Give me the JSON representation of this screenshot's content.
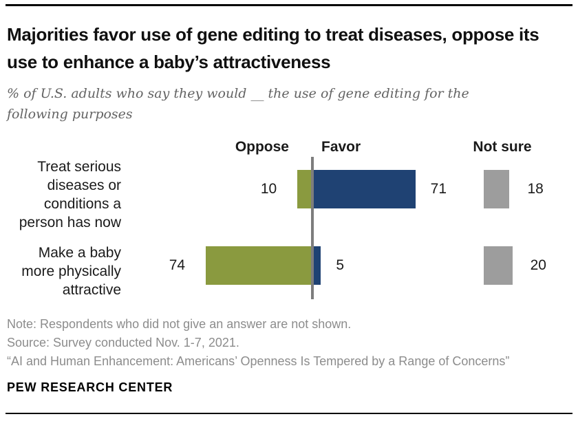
{
  "header": {
    "title": "Majorities favor use of gene editing to treat diseases, oppose its use to enhance a baby’s attractiveness",
    "subtitle": "% of U.S. adults who say they would __ the use of gene editing for the following purposes"
  },
  "chart_data": {
    "type": "bar",
    "orientation": "horizontal-diverging",
    "title": "Majorities favor use of gene editing to treat diseases, oppose its use to enhance a baby’s attractiveness",
    "categories": [
      "Treat serious\ndiseases or\nconditions a\nperson has now",
      "Make a baby\nmore physically\nattractive"
    ],
    "series": [
      {
        "name": "Oppose",
        "values": [
          10,
          74
        ],
        "color": "#8a9a3f"
      },
      {
        "name": "Favor",
        "values": [
          71,
          5
        ],
        "color": "#1f4273"
      },
      {
        "name": "Not sure",
        "values": [
          18,
          20
        ],
        "color": "#9d9d9d"
      }
    ],
    "axis": {
      "zero_line": true,
      "zero_line_color": "#7d7d7d",
      "unit": "percent"
    },
    "legend_position": "column-headers-top",
    "grid": false
  },
  "footer": {
    "note": "Note: Respondents who did not give an answer are not shown.",
    "source": "Source: Survey conducted Nov. 1-7, 2021.",
    "report": "“AI and Human Enhancement: Americans’ Openness Is Tempered by a Range of Concerns”",
    "brand": "PEW RESEARCH CENTER"
  }
}
